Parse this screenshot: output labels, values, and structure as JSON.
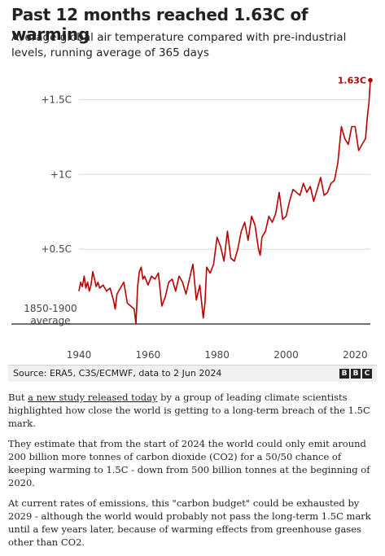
{
  "chart_data": {
    "type": "line",
    "title": "Past 12 months reached 1.63C of warming",
    "subtitle": "Average global air temperature compared with pre-industrial levels, running average of 365 days",
    "ylabel": "",
    "xlabel": "",
    "xlim": [
      1940,
      2024.4
    ],
    "ylim": [
      0,
      1.72
    ],
    "y_ticks": [
      {
        "value": 0,
        "label": "1850-1900\naverage"
      },
      {
        "value": 0.5,
        "label": "+0.5C"
      },
      {
        "value": 1,
        "label": "+1C"
      },
      {
        "value": 1.5,
        "label": "+1.5C"
      }
    ],
    "x_ticks": [
      1940,
      1960,
      1980,
      2000,
      2020
    ],
    "grid": true,
    "annotation": {
      "label": "1.63C",
      "x": 2024.4,
      "y": 1.63
    },
    "line_color": "#b80000",
    "series": [
      {
        "x": [
          1940,
          1940.5,
          1941,
          1941.5,
          1942,
          1942.5,
          1943,
          1943.5,
          1944,
          1944.5,
          1945,
          1945.5,
          1946,
          1947,
          1948,
          1949,
          1950,
          1950.5,
          1951,
          1952,
          1953,
          1954,
          1955,
          1956,
          1956.5,
          1957,
          1957.5,
          1958,
          1958.5,
          1959,
          1960,
          1961,
          1962,
          1963,
          1964,
          1965,
          1966,
          1967,
          1968,
          1969,
          1970,
          1971,
          1972,
          1973,
          1974,
          1975,
          1976,
          1976.5,
          1977,
          1978,
          1979,
          1980,
          1981,
          1982,
          1983,
          1984,
          1985,
          1986,
          1987,
          1988,
          1989,
          1990,
          1991,
          1992,
          1992.5,
          1993,
          1994,
          1995,
          1996,
          1997,
          1998,
          1999,
          2000,
          2001,
          2002,
          2003,
          2004,
          2005,
          2006,
          2007,
          2008,
          2009,
          2010,
          2011,
          2012,
          2013,
          2014,
          2015,
          2016,
          2017,
          2018,
          2019,
          2020,
          2021,
          2022,
          2023,
          2023.5,
          2024,
          2024.4
        ],
        "y": [
          0.22,
          0.28,
          0.25,
          0.32,
          0.24,
          0.28,
          0.22,
          0.26,
          0.35,
          0.3,
          0.25,
          0.28,
          0.24,
          0.26,
          0.22,
          0.24,
          0.16,
          0.1,
          0.2,
          0.24,
          0.28,
          0.14,
          0.12,
          0.1,
          0.0,
          0.25,
          0.35,
          0.38,
          0.3,
          0.32,
          0.26,
          0.32,
          0.3,
          0.34,
          0.12,
          0.18,
          0.28,
          0.3,
          0.22,
          0.32,
          0.28,
          0.2,
          0.3,
          0.4,
          0.16,
          0.26,
          0.04,
          0.14,
          0.38,
          0.34,
          0.4,
          0.58,
          0.52,
          0.42,
          0.62,
          0.44,
          0.42,
          0.5,
          0.62,
          0.68,
          0.56,
          0.72,
          0.66,
          0.5,
          0.46,
          0.58,
          0.62,
          0.72,
          0.68,
          0.74,
          0.88,
          0.7,
          0.72,
          0.82,
          0.9,
          0.88,
          0.86,
          0.94,
          0.88,
          0.92,
          0.82,
          0.9,
          0.98,
          0.86,
          0.88,
          0.94,
          0.96,
          1.08,
          1.32,
          1.24,
          1.2,
          1.32,
          1.32,
          1.16,
          1.2,
          1.24,
          1.38,
          1.48,
          1.63
        ]
      }
    ]
  },
  "source": {
    "text": "Source: ERA5, C3S/ECMWF, data to  2 Jun 2024",
    "logo": [
      "B",
      "B",
      "C"
    ]
  },
  "article": {
    "p1_before": "But ",
    "p1_link": "a new study released today",
    "p1_after": " by a group of leading climate scientists highlighted how close the world is getting to a long-term breach of the 1.5C mark.",
    "p2": "They estimate that from the start of 2024 the world could only emit around 200 billion more tonnes of carbon dioxide (CO2) for a 50/50 chance of keeping warming to 1.5C - down from 500 billion tonnes at the beginning of 2020.",
    "p3": "At current rates of emissions, this \"carbon budget\" could be exhausted by 2029 - although the world would probably not pass the long-term 1.5C mark until a few years later, because of warming effects from greenhouse gases other than CO2."
  }
}
